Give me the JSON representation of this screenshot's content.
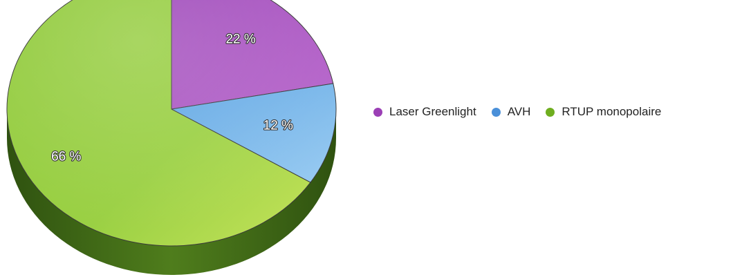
{
  "chart_data": {
    "type": "pie",
    "title": "",
    "legend_position": "right",
    "slices": [
      {
        "label": "Laser Greenlight",
        "value": 22,
        "value_label": "22 %",
        "color": "#a54fc0"
      },
      {
        "label": "AVH",
        "value": 12,
        "value_label": "12 %",
        "color": "#6aaee8"
      },
      {
        "label": "RTUP monopolaire",
        "value": 66,
        "value_label": "66 %",
        "color": "#8cc63f"
      }
    ]
  },
  "legend": {
    "items": [
      {
        "label": "Laser Greenlight",
        "color": "#9b3fb5"
      },
      {
        "label": "AVH",
        "color": "#4a90d9"
      },
      {
        "label": "RTUP monopolaire",
        "color": "#6fae1f"
      }
    ]
  }
}
